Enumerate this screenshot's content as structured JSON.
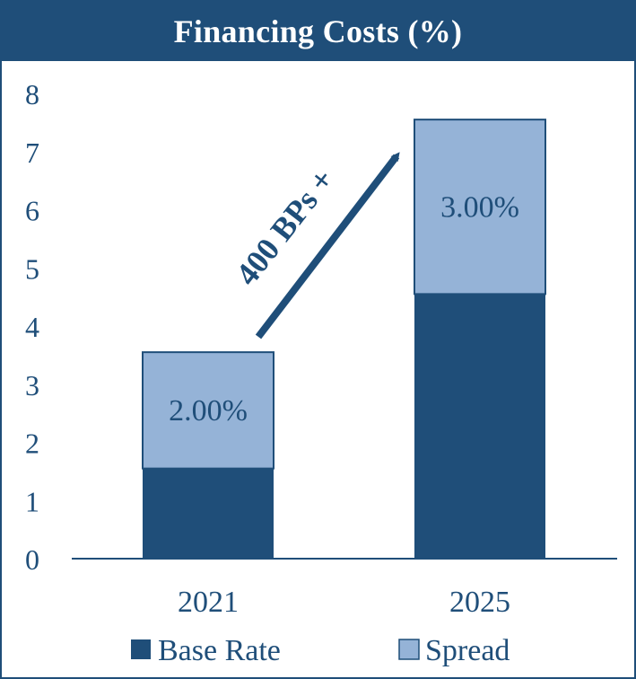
{
  "chart_data": {
    "type": "bar",
    "stacked": true,
    "title": "Financing Costs (%)",
    "categories": [
      "2021",
      "2025"
    ],
    "series": [
      {
        "name": "Base Rate",
        "values": [
          1.55,
          4.55
        ],
        "color": "#1f4e79"
      },
      {
        "name": "Spread",
        "values": [
          2.0,
          3.0
        ],
        "color": "#95b3d7",
        "labels": [
          "2.00%",
          "3.00%"
        ]
      }
    ],
    "yticks": [
      "0",
      "1",
      "2",
      "3",
      "4",
      "5",
      "6",
      "7",
      "8"
    ],
    "ylim": [
      0,
      8
    ],
    "grid": false,
    "legend_position": "bottom",
    "annotation": {
      "text": "400 BPs +",
      "from_category": "2021",
      "to_category": "2025",
      "color": "#1f4e79"
    }
  }
}
